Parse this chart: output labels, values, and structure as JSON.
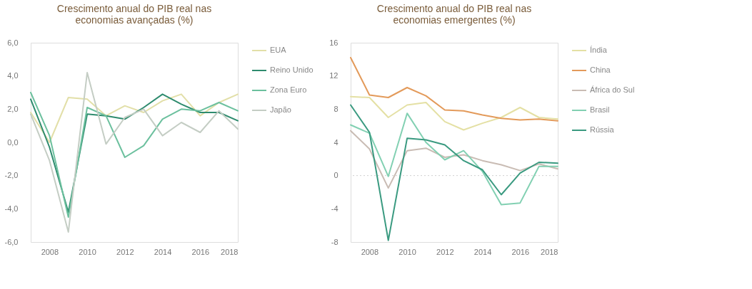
{
  "chart_data": [
    {
      "type": "line",
      "title": "Crescimento anual do PIB real nas economias avançadas (%)",
      "x": [
        2007,
        2008,
        2009,
        2010,
        2011,
        2012,
        2013,
        2014,
        2015,
        2016,
        2017,
        2018
      ],
      "xlim": [
        2007,
        2018
      ],
      "xticks": [
        2008,
        2010,
        2012,
        2014,
        2016,
        2018
      ],
      "ylim": [
        -6,
        6
      ],
      "yticks": [
        {
          "value": -6,
          "label": "-6,0"
        },
        {
          "value": -4,
          "label": "-4,0"
        },
        {
          "value": -2,
          "label": "-2,0"
        },
        {
          "value": 0,
          "label": "0,0"
        },
        {
          "value": 2,
          "label": "2,0"
        },
        {
          "value": 4,
          "label": "4,0"
        },
        {
          "value": 6,
          "label": "6,0"
        }
      ],
      "legend": "right",
      "grid": false,
      "series": [
        {
          "name": "EUA",
          "color": "#e2dfa8",
          "values": [
            1.8,
            0.0,
            2.7,
            2.6,
            1.6,
            2.2,
            1.8,
            2.5,
            2.9,
            1.6,
            2.4,
            2.9
          ]
        },
        {
          "name": "Reino Unido",
          "color": "#2e8b6e",
          "values": [
            2.6,
            -0.3,
            -4.2,
            1.7,
            1.6,
            1.4,
            2.1,
            2.9,
            2.3,
            1.8,
            1.8,
            1.3
          ]
        },
        {
          "name": "Zona Euro",
          "color": "#6cc09e",
          "values": [
            3.0,
            0.4,
            -4.5,
            2.1,
            1.6,
            -0.9,
            -0.2,
            1.4,
            2.0,
            1.9,
            2.4,
            1.9
          ]
        },
        {
          "name": "Japão",
          "color": "#c4cdc4",
          "values": [
            1.7,
            -1.1,
            -5.4,
            4.2,
            -0.1,
            1.5,
            2.0,
            0.4,
            1.2,
            0.6,
            1.9,
            0.8
          ]
        }
      ]
    },
    {
      "type": "line",
      "title": "Crescimento anual do PIB real nas economias emergentes (%)",
      "x": [
        2007,
        2008,
        2009,
        2010,
        2011,
        2012,
        2013,
        2014,
        2015,
        2016,
        2017,
        2018
      ],
      "xlim": [
        2007,
        2018
      ],
      "xticks": [
        2008,
        2010,
        2012,
        2014,
        2016,
        2018
      ],
      "ylim": [
        -8,
        16
      ],
      "yticks": [
        -8,
        -4,
        0,
        4,
        8,
        12,
        16
      ],
      "legend": "right",
      "grid": false,
      "ref_lines": [
        {
          "axis": "y",
          "value": 0,
          "color": "#cfcfcf",
          "line_style": "dotted"
        }
      ],
      "series": [
        {
          "name": "Índia",
          "color": "#e4e0a4",
          "values": [
            9.5,
            9.4,
            7.0,
            8.5,
            8.8,
            6.5,
            5.5,
            6.3,
            7.0,
            8.2,
            7.0,
            6.8
          ]
        },
        {
          "name": "China",
          "color": "#e39a5a",
          "values": [
            14.2,
            9.7,
            9.4,
            10.6,
            9.6,
            7.9,
            7.8,
            7.3,
            6.9,
            6.7,
            6.8,
            6.6
          ]
        },
        {
          "name": "África do Sul",
          "color": "#c9bcb4",
          "values": [
            5.4,
            3.2,
            -1.5,
            3.0,
            3.3,
            2.2,
            2.5,
            1.8,
            1.3,
            0.6,
            1.4,
            0.8
          ]
        },
        {
          "name": "Brasil",
          "color": "#82d0b2",
          "values": [
            6.1,
            5.1,
            -0.1,
            7.5,
            4.0,
            1.9,
            3.0,
            0.5,
            -3.5,
            -3.3,
            1.1,
            1.1
          ]
        },
        {
          "name": "Rússia",
          "color": "#3a9a80",
          "values": [
            8.5,
            5.2,
            -7.8,
            4.5,
            4.3,
            3.7,
            1.8,
            0.7,
            -2.3,
            0.3,
            1.6,
            1.5
          ]
        }
      ]
    }
  ]
}
